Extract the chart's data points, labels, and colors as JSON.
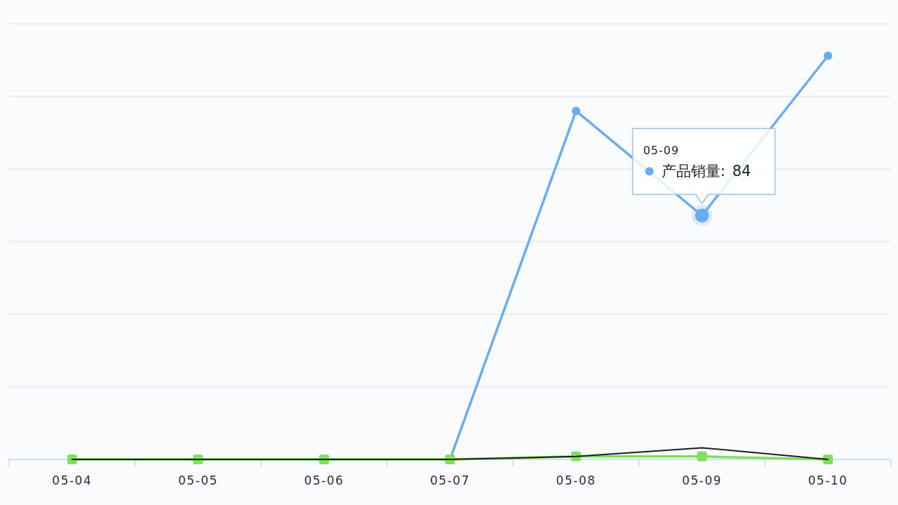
{
  "chart_data": {
    "type": "line",
    "categories": [
      "05-04",
      "05-05",
      "05-06",
      "05-07",
      "05-08",
      "05-09",
      "05-10"
    ],
    "ylim": [
      0,
      150
    ],
    "yticks": [
      {
        "value": 0,
        "label": null
      },
      {
        "value": 25,
        "label": null
      },
      {
        "value": 50,
        "label": null
      },
      {
        "value": 75,
        "label": null
      },
      {
        "value": 100,
        "label": null
      },
      {
        "value": 125,
        "label": null
      },
      {
        "value": 150,
        "label": null
      }
    ],
    "tick_labels": "x",
    "grid": "y",
    "series": [
      {
        "name": "产品销量:",
        "color": "#6aacf0",
        "marker": "circle",
        "values": [
          null,
          null,
          null,
          0,
          120,
          84,
          139
        ],
        "value_labels": [
          null,
          null,
          null,
          null,
          null,
          "84",
          null
        ]
      },
      {
        "color": "#80e05c",
        "marker": "square",
        "values": [
          0,
          0,
          0,
          0,
          1,
          1,
          0
        ]
      },
      {
        "color": "#1c1c22",
        "marker": "none",
        "values": [
          0,
          0,
          0,
          0,
          1,
          4,
          0
        ]
      }
    ],
    "annotations": [
      "05-09"
    ]
  }
}
